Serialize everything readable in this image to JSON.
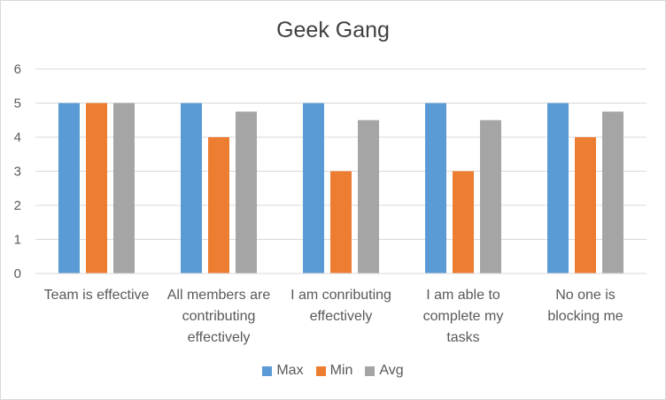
{
  "chart_data": {
    "type": "bar",
    "title": "Geek Gang",
    "categories": [
      [
        "Team is effective"
      ],
      [
        "All members are",
        "contributing",
        "effectively"
      ],
      [
        "I am conributing",
        "effectively"
      ],
      [
        "I am able to",
        "complete my",
        "tasks"
      ],
      [
        "No one is",
        "blocking me"
      ]
    ],
    "series": [
      {
        "name": "Max",
        "color": "#5b9bd5",
        "values": [
          5,
          5,
          5,
          5,
          5
        ]
      },
      {
        "name": "Min",
        "color": "#ed7d31",
        "values": [
          5,
          4,
          3,
          3,
          4
        ]
      },
      {
        "name": "Avg",
        "color": "#a5a5a5",
        "values": [
          5,
          4.75,
          4.5,
          4.5,
          4.75
        ]
      }
    ],
    "ylim": [
      0,
      6
    ],
    "yticks": [
      "0",
      "1",
      "2",
      "3",
      "4",
      "5",
      "6"
    ],
    "grid": true,
    "legend_position": "bottom"
  }
}
